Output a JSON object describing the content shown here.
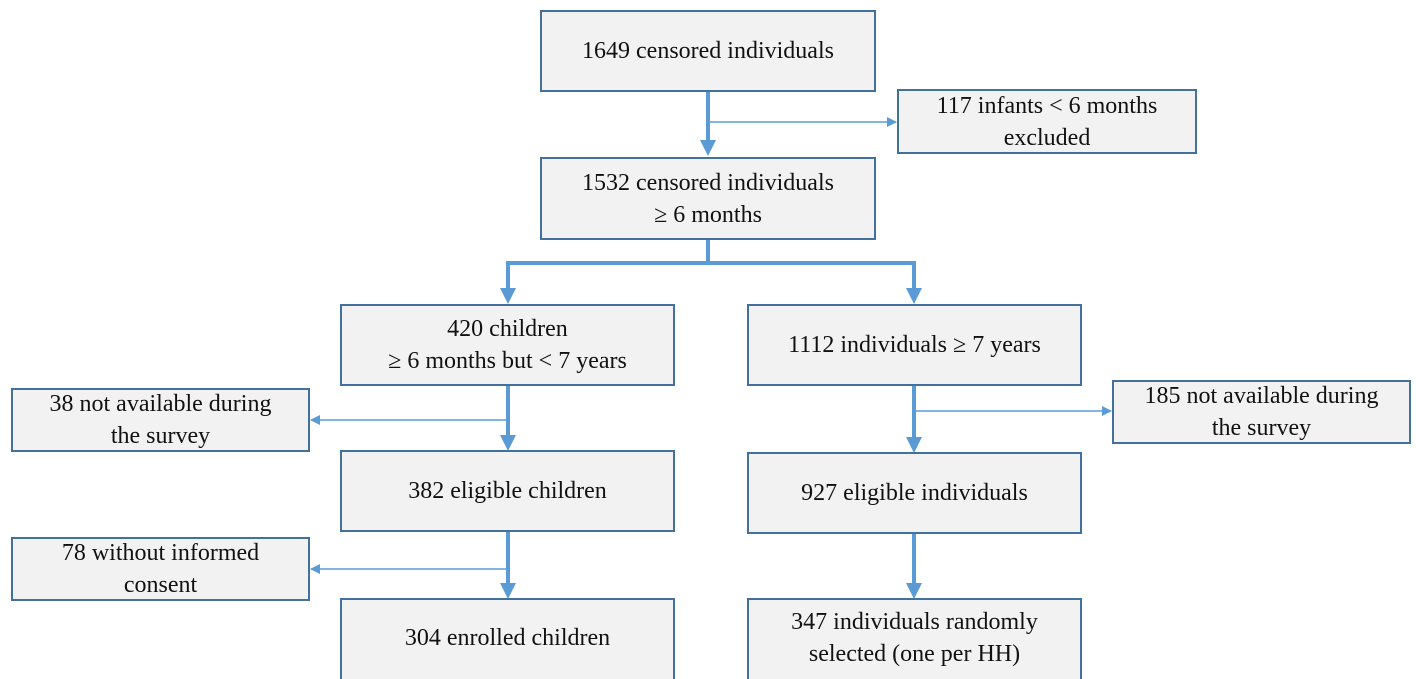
{
  "nodes": [
    {
      "lines": [
        "1649 censored individuals"
      ]
    },
    {
      "lines": [
        "117 infants < 6 months",
        "excluded"
      ]
    },
    {
      "lines": [
        "1532 censored individuals",
        "≥ 6 months"
      ]
    },
    {
      "lines": [
        "420 children",
        "≥ 6 months but < 7 years"
      ]
    },
    {
      "lines": [
        "1112 individuals ≥ 7 years"
      ]
    },
    {
      "lines": [
        "38 not available during",
        "the survey"
      ]
    },
    {
      "lines": [
        "185 not available during",
        "the survey"
      ]
    },
    {
      "lines": [
        "382 eligible children"
      ]
    },
    {
      "lines": [
        "927 eligible individuals"
      ]
    },
    {
      "lines": [
        "78 without informed",
        "consent"
      ]
    },
    {
      "lines": [
        "304 enrolled children"
      ]
    },
    {
      "lines": [
        "347 individuals randomly",
        "selected (one per HH)"
      ]
    }
  ]
}
